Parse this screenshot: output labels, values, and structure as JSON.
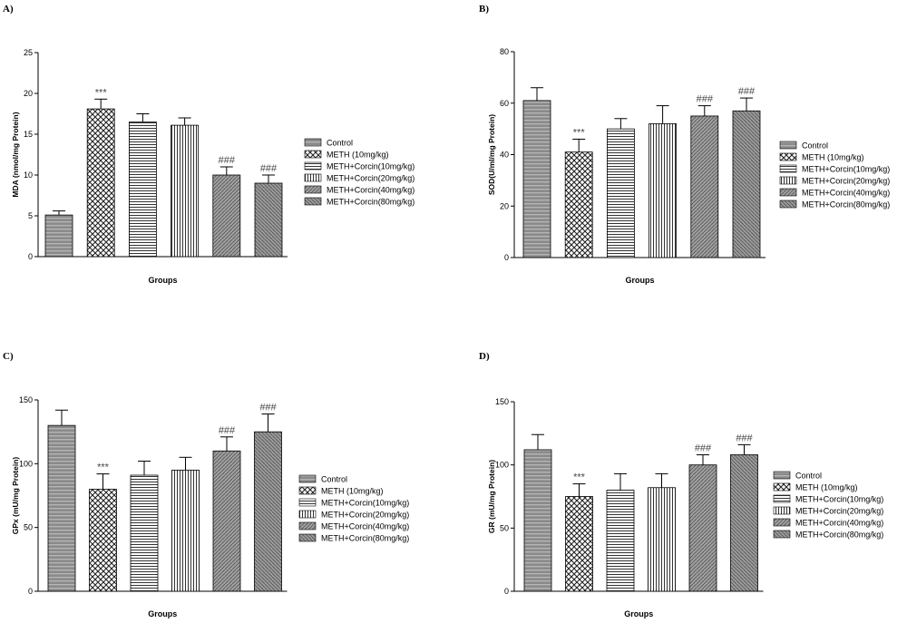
{
  "legend_labels": [
    "Control",
    "METH (10mg/kg)",
    "METH+Corcin(10mg/kg)",
    "METH+Corcin(20mg/kg)",
    "METH+Corcin(40mg/kg)",
    "METH+Corcin(80mg/kg)"
  ],
  "chart_data": [
    {
      "type": "bar",
      "panel_label": "A)",
      "xlabel": "Groups",
      "ylabel": "MDA (nmol/mg Protein)",
      "ylim": [
        0,
        25
      ],
      "yticks": [
        0,
        5,
        10,
        15,
        20,
        25
      ],
      "categories": [
        "Control",
        "METH (10mg/kg)",
        "METH+Corcin(10mg/kg)",
        "METH+Corcin(20mg/kg)",
        "METH+Corcin(40mg/kg)",
        "METH+Corcin(80mg/kg)"
      ],
      "values": [
        5.1,
        18.1,
        16.5,
        16.1,
        10.0,
        9.0
      ],
      "errors": [
        0.5,
        1.2,
        1.0,
        0.9,
        1.0,
        1.0
      ],
      "annotations": [
        "",
        "***",
        "",
        "",
        "###",
        "###"
      ],
      "legend": "right"
    },
    {
      "type": "bar",
      "panel_label": "B)",
      "xlabel": "Groups",
      "ylabel": "SOD(U/ml/mg Protein)",
      "ylim": [
        0,
        80
      ],
      "yticks": [
        0,
        20,
        40,
        60,
        80
      ],
      "categories": [
        "Control",
        "METH (10mg/kg)",
        "METH+Corcin(10mg/kg)",
        "METH+Corcin(20mg/kg)",
        "METH+Corcin(40mg/kg)",
        "METH+Corcin(80mg/kg)"
      ],
      "values": [
        61,
        41,
        50,
        52,
        55,
        57
      ],
      "errors": [
        5,
        5,
        4,
        7,
        4,
        5
      ],
      "annotations": [
        "",
        "***",
        "",
        "",
        "###",
        "###"
      ],
      "legend": "right"
    },
    {
      "type": "bar",
      "panel_label": "C)",
      "xlabel": "Groups",
      "ylabel": "GPx (mU/mg Protein)",
      "ylim": [
        0,
        150
      ],
      "yticks": [
        0,
        50,
        100,
        150
      ],
      "categories": [
        "Control",
        "METH (10mg/kg)",
        "METH+Corcin(10mg/kg)",
        "METH+Corcin(20mg/kg)",
        "METH+Corcin(40mg/kg)",
        "METH+Corcin(80mg/kg)"
      ],
      "values": [
        130,
        80,
        91,
        95,
        110,
        125
      ],
      "errors": [
        12,
        12,
        11,
        10,
        11,
        14
      ],
      "annotations": [
        "",
        "***",
        "",
        "",
        "###",
        "###"
      ],
      "legend": "right"
    },
    {
      "type": "bar",
      "panel_label": "D)",
      "xlabel": "Groups",
      "ylabel": "GR (mU/mg Protein)",
      "ylim": [
        0,
        150
      ],
      "yticks": [
        0,
        50,
        100,
        150
      ],
      "categories": [
        "Control",
        "METH (10mg/kg)",
        "METH+Corcin(10mg/kg)",
        "METH+Corcin(20mg/kg)",
        "METH+Corcin(40mg/kg)",
        "METH+Corcin(80mg/kg)"
      ],
      "values": [
        112,
        75,
        80,
        82,
        100,
        108
      ],
      "errors": [
        12,
        10,
        13,
        11,
        8,
        8
      ],
      "annotations": [
        "",
        "***",
        "",
        "",
        "###",
        "###"
      ],
      "legend": "right"
    }
  ]
}
